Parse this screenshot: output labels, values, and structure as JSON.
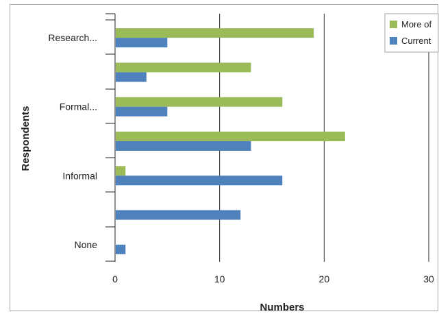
{
  "chart_data": {
    "type": "bar",
    "orientation": "horizontal",
    "xlabel": "Numbers",
    "ylabel": "Respondents",
    "xlim": [
      0,
      30
    ],
    "x_ticks": [
      0,
      10,
      20,
      30
    ],
    "grid": "vertical major gridlines",
    "legend_position": "top-right",
    "categories": [
      "Research...",
      "",
      "Formal...",
      "",
      "Informal",
      "",
      "None"
    ],
    "series": [
      {
        "name": "More of",
        "color": "#9bbb59",
        "values": [
          19,
          13,
          16,
          22,
          1,
          0,
          0
        ]
      },
      {
        "name": "Current",
        "color": "#4f81bd",
        "values": [
          5,
          3,
          5,
          13,
          16,
          12,
          1
        ]
      }
    ]
  }
}
